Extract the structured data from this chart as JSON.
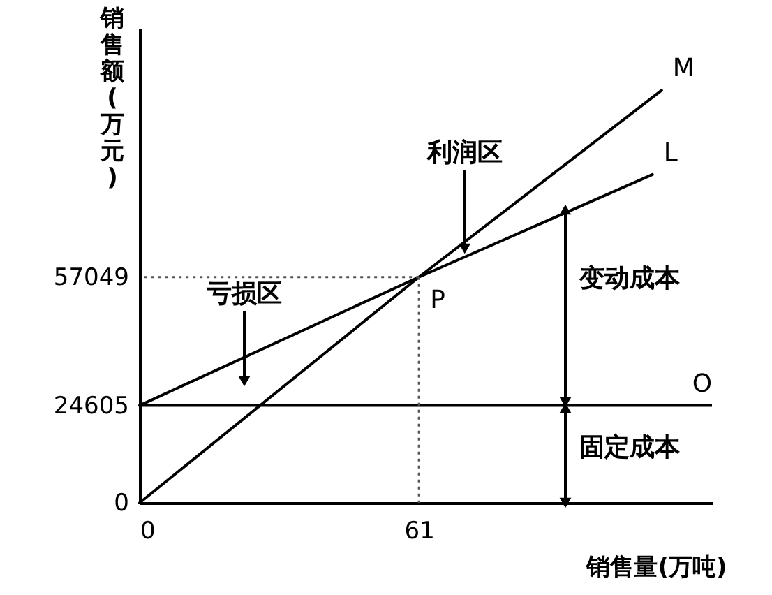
{
  "chart_data": {
    "type": "line",
    "xlabel": "销售量(万吨)",
    "ylabel": "销售额(万元)",
    "xlim": [
      0,
      125
    ],
    "ylim": [
      0,
      120000
    ],
    "xticks": [
      0,
      61
    ],
    "yticks": [
      0,
      24605,
      57049
    ],
    "grid": false,
    "legend": false,
    "series": [
      {
        "name": "M",
        "color": "#000000",
        "x": [
          0,
          61,
          114
        ],
        "values": [
          0,
          57049,
          104231
        ]
      },
      {
        "name": "L",
        "color": "#000000",
        "x": [
          0,
          61,
          112
        ],
        "values": [
          24605,
          57049,
          82953
        ]
      }
    ],
    "ref_lines": [
      {
        "axis": "y",
        "value": 24605,
        "label": "O",
        "color": "#000000"
      }
    ],
    "annotations": [
      {
        "text": "利润区",
        "x": 71,
        "y": 64235
      },
      "亏损区",
      {
        "text": "P",
        "x": 61,
        "y": 57049
      },
      "变动成本",
      "固定成本"
    ]
  }
}
